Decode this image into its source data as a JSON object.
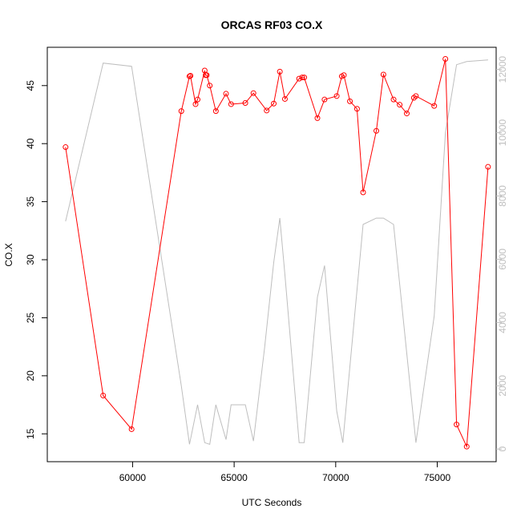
{
  "chart_data": {
    "type": "line",
    "title": "ORCAS RF03 CO.X",
    "xlabel": "UTC Seconds",
    "ylabel": "CO.X",
    "xlim": [
      55800,
      77900
    ],
    "ylim": [
      12.6,
      48.3
    ],
    "ylim_right": [
      -400,
      12700
    ],
    "x_ticks": [
      60000,
      65000,
      70000,
      75000
    ],
    "y_ticks": [
      15,
      20,
      25,
      30,
      35,
      40,
      45
    ],
    "y_ticks_right": [
      0,
      2000,
      4000,
      6000,
      8000,
      10000,
      12000
    ],
    "grid": false,
    "colors": {
      "primary": "#ff0000",
      "secondary": "#bebebe",
      "axis": "#000000"
    },
    "series": [
      {
        "axis": "left",
        "marker": "open-circle",
        "color": "#ff0000",
        "x": [
          56700,
          58550,
          59950,
          62400,
          62800,
          62850,
          63100,
          63200,
          63550,
          63600,
          63650,
          63800,
          64100,
          64600,
          64850,
          65550,
          65950,
          66600,
          66950,
          67250,
          67500,
          68200,
          68350,
          68450,
          69100,
          69450,
          70050,
          70300,
          70400,
          70700,
          71050,
          71350,
          72000,
          72350,
          72850,
          73150,
          73500,
          73850,
          73950,
          74850,
          75400,
          75950,
          76450,
          77500
        ],
        "y": [
          39.7,
          18.3,
          15.4,
          42.8,
          45.8,
          45.85,
          43.4,
          43.8,
          46.3,
          45.9,
          45.9,
          45.0,
          42.8,
          44.3,
          43.4,
          43.5,
          44.35,
          42.85,
          43.45,
          46.2,
          43.85,
          45.6,
          45.7,
          45.7,
          42.2,
          43.8,
          44.1,
          45.8,
          45.9,
          43.65,
          43.0,
          35.8,
          41.1,
          45.95,
          43.8,
          43.35,
          42.6,
          43.95,
          44.1,
          43.25,
          47.3,
          15.8,
          13.9,
          38.0
        ]
      },
      {
        "axis": "right",
        "marker": "none",
        "color": "#bebebe",
        "x": [
          56700,
          58550,
          59950,
          62400,
          62800,
          63200,
          63550,
          63800,
          64100,
          64600,
          64850,
          65550,
          65950,
          66500,
          66950,
          67250,
          67500,
          68200,
          68450,
          69100,
          69450,
          70050,
          70350,
          71350,
          72000,
          72350,
          72850,
          73950,
          74850,
          75400,
          75950,
          76450,
          77500
        ],
        "y": [
          7200,
          12200,
          12100,
          2000,
          150,
          1400,
          200,
          150,
          1400,
          300,
          1400,
          1400,
          250,
          3200,
          5900,
          7300,
          5500,
          200,
          200,
          4800,
          5800,
          1200,
          200,
          7100,
          7300,
          7300,
          7100,
          200,
          4200,
          10000,
          12150,
          12250,
          12300
        ]
      }
    ]
  }
}
